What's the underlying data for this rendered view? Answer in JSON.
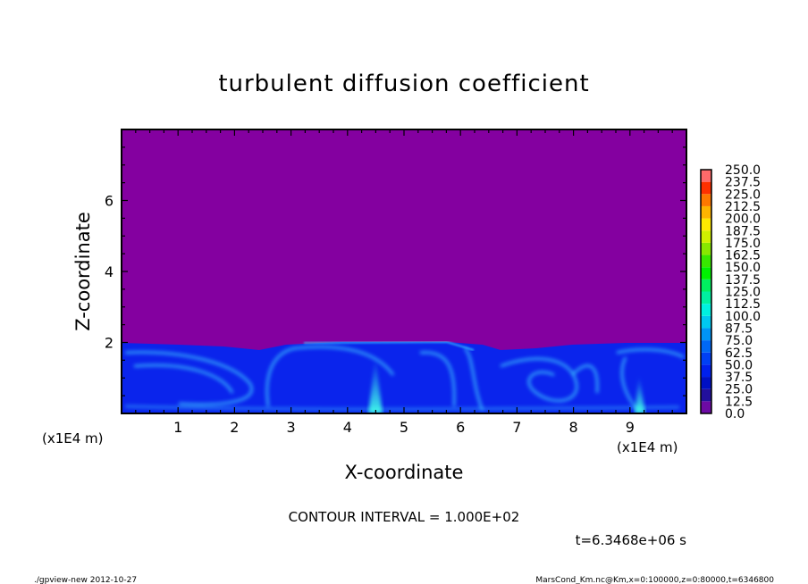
{
  "chart_data": {
    "type": "heatmap",
    "title": "turbulent diffusion coefficient",
    "xlabel": "X-coordinate",
    "ylabel": "Z-coordinate",
    "x_unit": "(x1E4 m)",
    "y_unit": "(x1E4 m)",
    "xlim": [
      0,
      10
    ],
    "ylim": [
      0,
      8
    ],
    "xticks": [
      "1",
      "2",
      "3",
      "4",
      "5",
      "6",
      "7",
      "8",
      "9"
    ],
    "yticks": [
      "2",
      "4",
      "6"
    ],
    "colorbar": {
      "levels": [
        "0.0",
        "12.5",
        "25.0",
        "37.5",
        "50.0",
        "62.5",
        "75.0",
        "87.5",
        "100.0",
        "112.5",
        "125.0",
        "137.5",
        "150.0",
        "162.5",
        "175.0",
        "187.5",
        "200.0",
        "212.5",
        "225.0",
        "237.5",
        "250.0"
      ],
      "colors": [
        "#6c0aa4",
        "#22109c",
        "#0010c4",
        "#0020ec",
        "#0040f4",
        "#0068f4",
        "#0094f4",
        "#00c8f0",
        "#00f0e0",
        "#00f0a0",
        "#00f060",
        "#00f000",
        "#38e800",
        "#88e800",
        "#d0f000",
        "#ffe800",
        "#ffb400",
        "#ff7800",
        "#ff3000",
        "#ff0a0a"
      ],
      "top_color": "#ff6a6a"
    },
    "field_colors": {
      "background": "#8400a0",
      "low": "#0a24ec",
      "streak": "#3cc8ff"
    },
    "contour_interval": "CONTOUR INTERVAL = 1.000E+02",
    "time": "t=6.3468e+06 s"
  },
  "footer": {
    "left": "./gpview-new  2012-10-27",
    "right": "MarsCond_Km.nc@Km,x=0:100000,z=0:80000,t=6346800"
  }
}
